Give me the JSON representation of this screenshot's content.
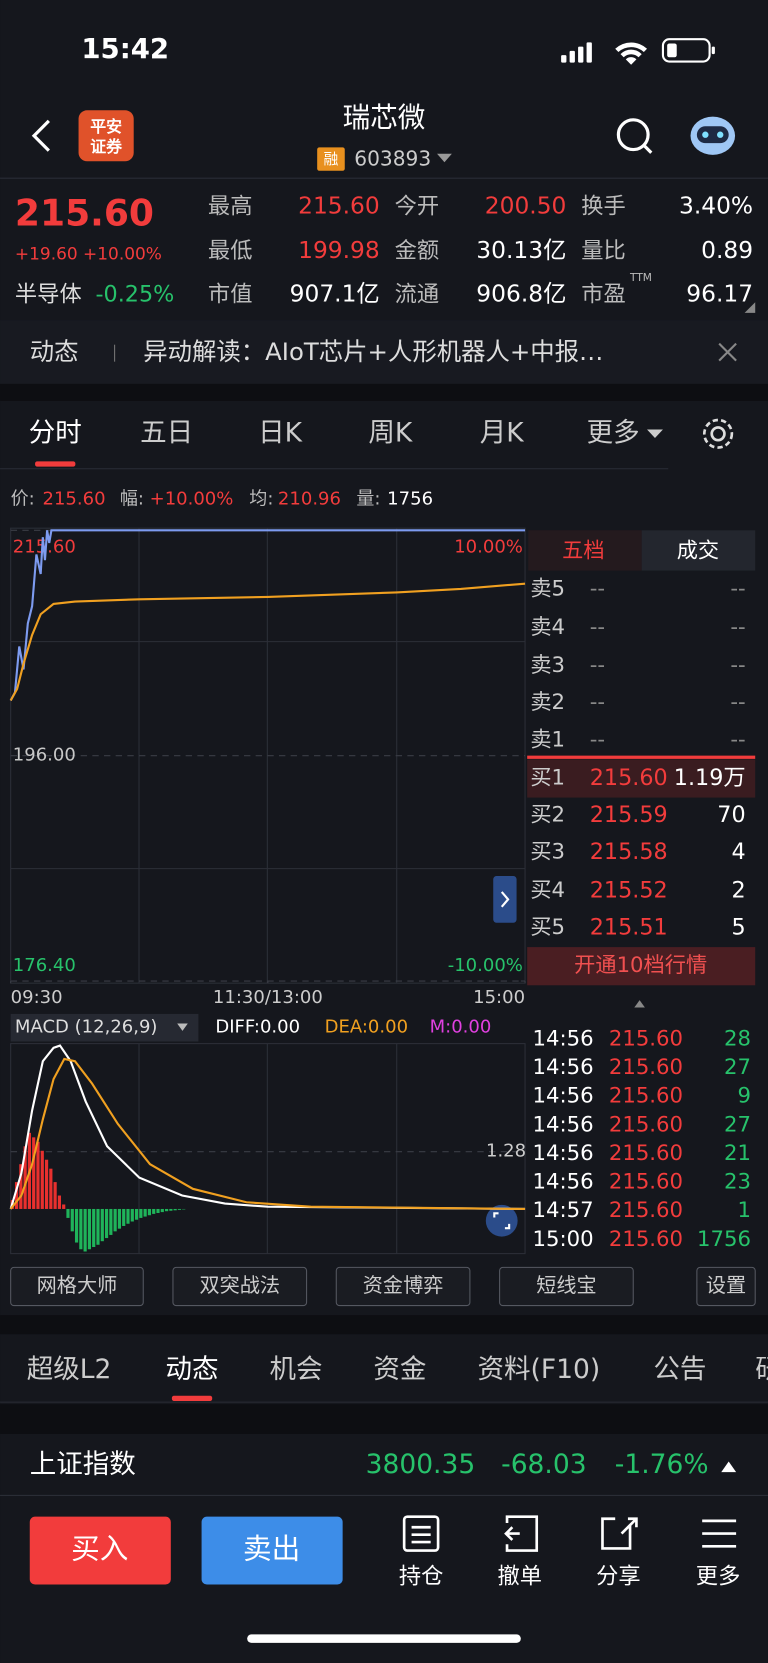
{
  "status_bar": {
    "time": "15:42"
  },
  "header": {
    "logo": [
      "平安",
      "证券"
    ],
    "title": "瑞芯微",
    "badge": "融",
    "code": "603893"
  },
  "quote": {
    "price": "215.60",
    "change": "+19.60 +10.00%",
    "sector": "半导体",
    "sector_change": "-0.25%",
    "ttm": "TTM",
    "stats": [
      {
        "label": "最高",
        "value": "215.60",
        "color": "#f23c3c"
      },
      {
        "label": "今开",
        "value": "200.50",
        "color": "#f23c3c"
      },
      {
        "label": "换手",
        "value": "3.40%",
        "color": "#ffffff"
      },
      {
        "label": "最低",
        "value": "199.98",
        "color": "#f23c3c"
      },
      {
        "label": "金额",
        "value": "30.13亿",
        "color": "#ffffff"
      },
      {
        "label": "量比",
        "value": "0.89",
        "color": "#ffffff"
      },
      {
        "label": "市值",
        "value": "907.1亿",
        "color": "#ffffff"
      },
      {
        "label": "流通",
        "value": "906.8亿",
        "color": "#ffffff"
      },
      {
        "label": "市盈",
        "value": "96.17",
        "color": "#ffffff"
      }
    ]
  },
  "news": {
    "label": "动态",
    "text": "异动解读：AIoT芯片+人形机器人+中报…"
  },
  "tabs": [
    "分时",
    "五日",
    "日K",
    "周K",
    "月K",
    "更多"
  ],
  "info": [
    {
      "label": "价:",
      "value": "215.60",
      "color": "#f23c3c"
    },
    {
      "label": "幅:",
      "value": "+10.00%",
      "color": "#f23c3c"
    },
    {
      "label": "均:",
      "value": "210.96",
      "color": "#f23c3c"
    },
    {
      "label": "量:",
      "value": "1756",
      "color": "#ffffff"
    }
  ],
  "chart_data": [
    {
      "type": "line",
      "xlim": [
        0,
        240
      ],
      "xticks": [
        {
          "value": 0,
          "label": "09:30"
        },
        {
          "value": 120,
          "label": "11:30/13:00"
        },
        {
          "value": 240,
          "label": "15:00"
        }
      ],
      "ylim": [
        176.4,
        215.6
      ],
      "yticks": [
        {
          "value": 215.6,
          "label": "215.60"
        },
        {
          "value": 196,
          "label": "196.00"
        },
        {
          "value": 176.4,
          "label": "176.40"
        }
      ],
      "ytick_colors": [
        "#f23c3c",
        "#c8c8c8",
        "#27c26b"
      ],
      "y2lim": [
        -10,
        10
      ],
      "y2ticks": [
        {
          "value": 10,
          "label": "10.00%"
        },
        {
          "value": -10,
          "label": "-10.00%"
        }
      ],
      "series": [
        {
          "color": "#7d9bf0",
          "x": [
            0,
            2,
            4,
            6,
            8,
            10,
            12,
            14,
            15,
            16,
            17,
            18,
            19,
            20,
            240
          ],
          "values": [
            200.8,
            201.5,
            205.5,
            203.5,
            207.5,
            209,
            213.5,
            211.8,
            215,
            213,
            215.6,
            214.5,
            215.6,
            215.6,
            215.6
          ]
        },
        {
          "color": "#f0a020",
          "x": [
            0,
            3,
            6,
            10,
            14,
            20,
            30,
            60,
            120,
            180,
            210,
            240
          ],
          "values": [
            200.8,
            201.8,
            204,
            206.5,
            208.3,
            209.2,
            209.4,
            209.6,
            209.8,
            210.2,
            210.5,
            210.96
          ]
        }
      ]
    },
    {
      "type": "macd",
      "title": "MACD (12,26,9)",
      "indicators": [
        {
          "label": "DIFF:0.00",
          "color": "#ffffff"
        },
        {
          "label": "DEA:0.00",
          "color": "#f0a020"
        },
        {
          "label": "M:0.00",
          "color": "#e040e0"
        }
      ],
      "xlim": [
        0,
        240
      ],
      "ylim": [
        -0.95,
        3.67
      ],
      "yticks": [
        1.28
      ],
      "series": [
        {
          "kind": "bar",
          "up_color": "#e8302e",
          "down_color": "#1fb45a",
          "x": [
            0,
            2,
            4,
            6,
            8,
            10,
            12,
            14,
            16,
            18,
            20,
            22,
            24,
            26,
            28,
            30,
            32,
            34,
            36,
            38,
            40,
            42,
            44,
            46,
            48,
            50,
            52,
            54,
            56,
            58,
            60,
            62,
            64,
            66,
            68,
            70,
            72,
            74,
            76,
            78,
            80
          ],
          "values": [
            0.2,
            0.6,
            1.0,
            1.4,
            1.7,
            1.6,
            1.5,
            1.3,
            1.1,
            0.9,
            0.6,
            0.3,
            0.1,
            -0.2,
            -0.5,
            -0.75,
            -0.9,
            -0.95,
            -0.9,
            -0.85,
            -0.8,
            -0.72,
            -0.65,
            -0.58,
            -0.5,
            -0.44,
            -0.38,
            -0.33,
            -0.28,
            -0.24,
            -0.2,
            -0.17,
            -0.14,
            -0.11,
            -0.09,
            -0.07,
            -0.05,
            -0.04,
            -0.03,
            -0.02,
            -0.01
          ]
        },
        {
          "kind": "line",
          "color": "#ffffff",
          "x": [
            0,
            5,
            10,
            15,
            20,
            23,
            28,
            35,
            45,
            60,
            80,
            100,
            120,
            240
          ],
          "values": [
            0,
            0.8,
            2.2,
            3.3,
            3.6,
            3.65,
            3.3,
            2.4,
            1.4,
            0.7,
            0.3,
            0.12,
            0.05,
            0
          ]
        },
        {
          "kind": "line",
          "color": "#f0a020",
          "x": [
            0,
            5,
            10,
            15,
            20,
            25,
            30,
            38,
            50,
            65,
            85,
            110,
            140,
            240
          ],
          "values": [
            0,
            0.3,
            1.0,
            2.0,
            2.9,
            3.35,
            3.3,
            2.8,
            1.9,
            1.0,
            0.45,
            0.15,
            0.05,
            0
          ]
        }
      ]
    }
  ],
  "order_book": {
    "tabs": [
      "五档",
      "成交"
    ],
    "asks": [
      [
        "卖5",
        "--",
        "--"
      ],
      [
        "卖4",
        "--",
        "--"
      ],
      [
        "卖3",
        "--",
        "--"
      ],
      [
        "卖2",
        "--",
        "--"
      ],
      [
        "卖1",
        "--",
        "--"
      ]
    ],
    "bids": [
      [
        "买1",
        "215.60",
        "1.19万"
      ],
      [
        "买2",
        "215.59",
        "70"
      ],
      [
        "买3",
        "215.58",
        "4"
      ],
      [
        "买4",
        "215.52",
        "2"
      ],
      [
        "买5",
        "215.51",
        "5"
      ]
    ],
    "button": "开通10档行情"
  },
  "trades": [
    [
      "14:56",
      "215.60",
      "28"
    ],
    [
      "14:56",
      "215.60",
      "27"
    ],
    [
      "14:56",
      "215.60",
      "9"
    ],
    [
      "14:56",
      "215.60",
      "27"
    ],
    [
      "14:56",
      "215.60",
      "21"
    ],
    [
      "14:56",
      "215.60",
      "23"
    ],
    [
      "14:57",
      "215.60",
      "1"
    ],
    [
      "15:00",
      "215.60",
      "1756"
    ]
  ],
  "tools": [
    "网格大师",
    "双突战法",
    "资金博弈",
    "短线宝",
    "设置"
  ],
  "bottom_tabs": [
    "超级L2",
    "动态",
    "机会",
    "资金",
    "资料(F10)",
    "公告",
    "研"
  ],
  "index": {
    "name": "上证指数",
    "value": "3800.35",
    "change": "-68.03",
    "pct": "-1.76%"
  },
  "actions": {
    "buy": "买入",
    "sell": "卖出",
    "nav": [
      "持仓",
      "撤单",
      "分享",
      "更多"
    ]
  }
}
